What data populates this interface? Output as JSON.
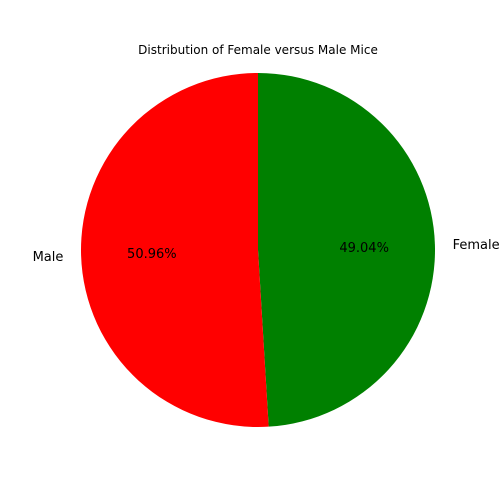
{
  "chart_data": {
    "type": "pie",
    "title": "Distribution of Female versus Male Mice",
    "slices": [
      {
        "label": "Female",
        "value": 49.04,
        "pct_label": "49.04%",
        "color": "#008000"
      },
      {
        "label": "Male",
        "value": 50.96,
        "pct_label": "50.96%",
        "color": "#ff0000"
      }
    ],
    "start_angle_deg": 90,
    "direction": "clockwise",
    "legend": "none"
  }
}
